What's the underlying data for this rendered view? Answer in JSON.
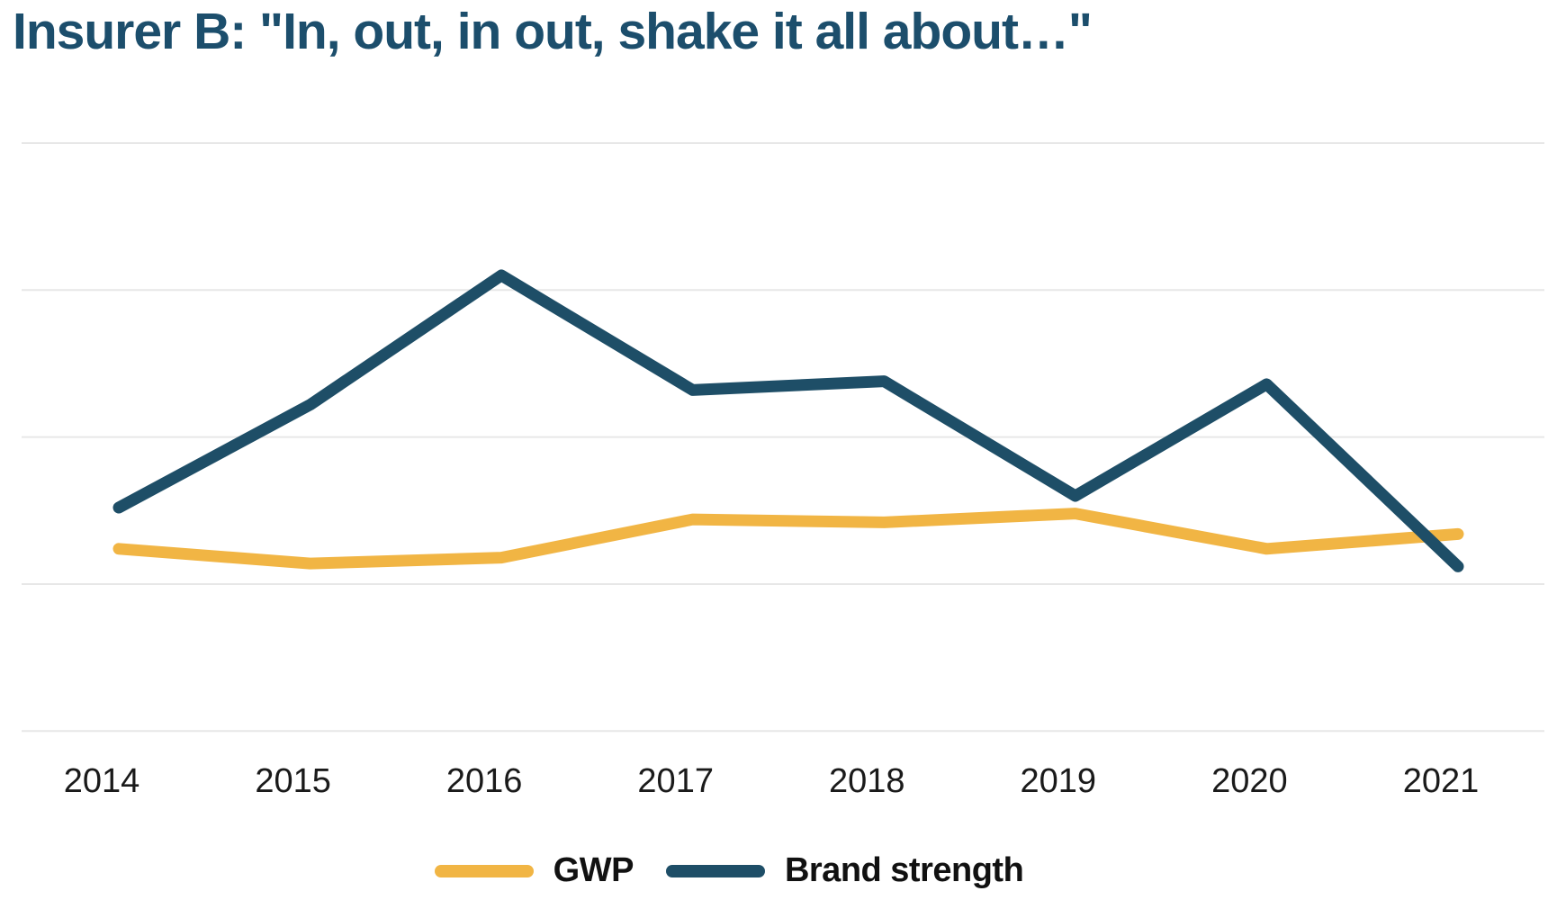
{
  "chart_data": {
    "type": "line",
    "title": "Insurer B: \"In, out, in out, shake it all about…\"",
    "x": [
      "2014",
      "2015",
      "2016",
      "2017",
      "2018",
      "2019",
      "2020",
      "2021"
    ],
    "series": [
      {
        "name": "GWP",
        "color": "#f1b544",
        "values": [
          31,
          28.5,
          29.5,
          36,
          35.5,
          37,
          31,
          33.5
        ]
      },
      {
        "name": "Brand strength",
        "color": "#1e4e67",
        "values": [
          38,
          55.5,
          77.5,
          58,
          59.5,
          40,
          59,
          28
        ]
      }
    ],
    "xlabel": "",
    "ylabel": "",
    "ylim": [
      0,
      100
    ],
    "y_axis_labels_visible": false,
    "gridlines": {
      "values": [
        0,
        25,
        50,
        75,
        100
      ],
      "color": "#e7e7e7"
    },
    "legend_position": "bottom",
    "x_label_color": "#1a1a1a",
    "title_color": "#1c4e6c"
  }
}
